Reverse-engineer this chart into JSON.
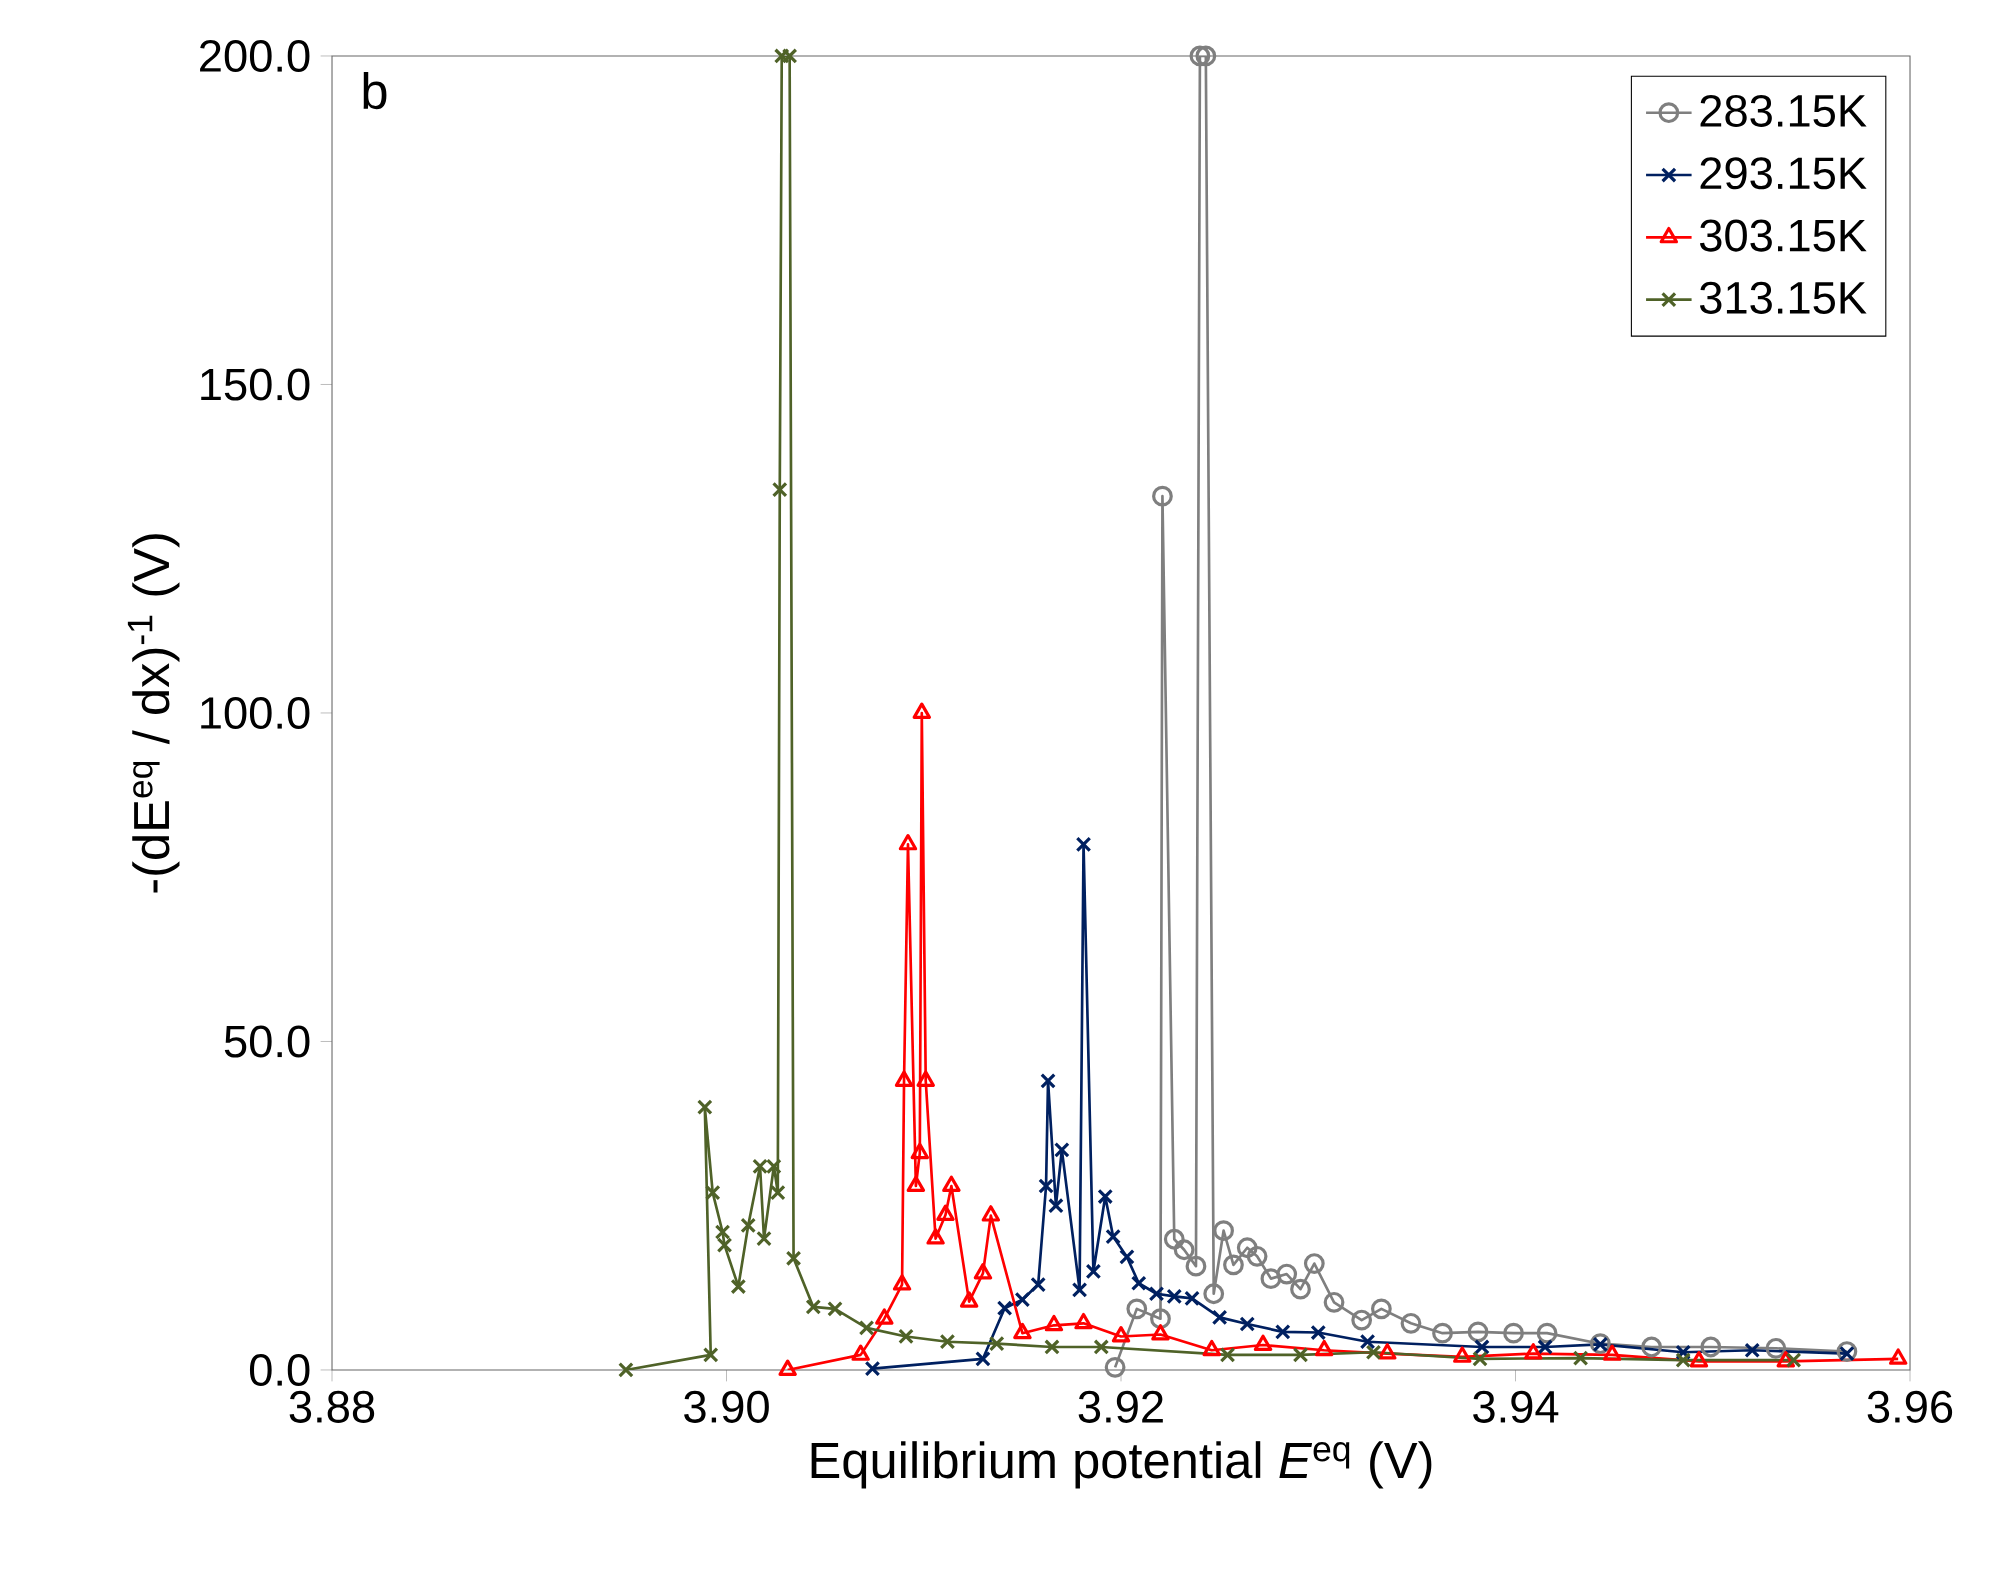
{
  "chart_data": {
    "type": "line",
    "xlabel": "Equilibrium potential  *E*$^{eq}$ (V)",
    "ylabel": "-(dE$^{eq}$ / dx)$^{-1}$  (V)",
    "annotations": [
      "b"
    ],
    "xlim": [
      3.88,
      3.96
    ],
    "xticks": [
      3.88,
      {
        "value": 3.9,
        "label": "3.90"
      },
      3.92,
      3.94,
      3.96
    ],
    "ylim": [
      0,
      200
    ],
    "yticks": [
      {
        "value": 0,
        "label": "0.0"
      },
      {
        "value": 50,
        "label": "50.0"
      },
      {
        "value": 100,
        "label": "100.0"
      },
      {
        "value": 150,
        "label": "150.0"
      },
      {
        "value": 200,
        "label": "200.0"
      }
    ],
    "grid": false,
    "legend": "top right",
    "series": [
      {
        "name": "283.15K",
        "color": "#7f7f7f",
        "marker": "circle",
        "x": [
          3.9197,
          3.9208,
          3.922,
          3.9221,
          3.9227,
          3.9232,
          3.9238,
          3.924,
          3.9243,
          3.9247,
          3.9252,
          3.9257,
          3.9264,
          3.9269,
          3.9276,
          3.9284,
          3.9291,
          3.9298,
          3.9308,
          3.9322,
          3.9332,
          3.9347,
          3.9363,
          3.9381,
          3.9399,
          3.9416,
          3.9443,
          3.9469,
          3.9499,
          3.9532,
          3.9568
        ],
        "values": [
          0.4,
          9.3,
          7.8,
          133,
          19.9,
          18.3,
          15.8,
          200,
          200,
          11.6,
          21.2,
          16,
          18.6,
          17.3,
          13.9,
          14.6,
          12.3,
          16.2,
          10.3,
          7.6,
          9.3,
          7.1,
          5.6,
          5.8,
          5.6,
          5.6,
          4,
          3.5,
          3.5,
          3.3,
          2.8
        ]
      },
      {
        "name": "293.15K",
        "color": "#002060",
        "marker": "cross",
        "x": [
          3.9074,
          3.913,
          3.9141,
          3.915,
          3.9158,
          3.9162,
          3.9163,
          3.9167,
          3.917,
          3.9179,
          3.9181,
          3.9186,
          3.9192,
          3.9196,
          3.9203,
          3.9209,
          3.9218,
          3.9227,
          3.9236,
          3.925,
          3.9264,
          3.9282,
          3.93,
          3.9325,
          3.9383,
          3.9415,
          3.9443,
          3.9485,
          3.952,
          3.9568
        ],
        "values": [
          0.2,
          1.7,
          9.4,
          10.7,
          13,
          28,
          44,
          25,
          33.5,
          12.2,
          80,
          15,
          26.4,
          20.3,
          17.2,
          13.2,
          11.6,
          11.2,
          10.9,
          8,
          7,
          5.8,
          5.7,
          4.3,
          3.5,
          3.5,
          3.9,
          2.7,
          3,
          2.5
        ]
      },
      {
        "name": "303.15K",
        "color": "#ff0000",
        "marker": "triangle",
        "x": [
          3.9031,
          3.9068,
          3.908,
          3.9089,
          3.909,
          3.9092,
          3.9096,
          3.9098,
          3.9099,
          3.9101,
          3.9106,
          3.9111,
          3.9114,
          3.9123,
          3.913,
          3.9134,
          3.915,
          3.9166,
          3.9181,
          3.92,
          3.922,
          3.9246,
          3.9272,
          3.9303,
          3.9335,
          3.9373,
          3.9409,
          3.9449,
          3.9493,
          3.9537,
          3.9594
        ],
        "values": [
          0,
          2.3,
          7.8,
          13,
          44,
          80,
          28,
          33,
          100,
          44,
          20,
          23.6,
          28,
          10.4,
          14.7,
          23.5,
          5.6,
          6.8,
          7.1,
          5.1,
          5.4,
          3,
          3.8,
          3,
          2.5,
          2,
          2.5,
          2.3,
          1.3,
          1.3,
          1.7
        ]
      },
      {
        "name": "313.15K",
        "color": "#4f6228",
        "marker": "cross",
        "x": [
          3.8949,
          3.8992,
          3.8989,
          3.8993,
          3.8998,
          3.8999,
          3.9006,
          3.9011,
          3.9017,
          3.9019,
          3.9024,
          3.9026,
          3.9027,
          3.9028,
          3.9032,
          3.9034,
          3.9044,
          3.9055,
          3.9071,
          3.9091,
          3.9112,
          3.9137,
          3.9165,
          3.919,
          3.9254,
          3.9291,
          3.9328,
          3.9382,
          3.9433,
          3.9485,
          3.9541
        ],
        "values": [
          0,
          2.3,
          40,
          27,
          21,
          19,
          12.7,
          22,
          31,
          20,
          31,
          27,
          134,
          200,
          200,
          17,
          9.6,
          9.3,
          6.4,
          5.1,
          4.3,
          4,
          3.5,
          3.5,
          2.3,
          2.3,
          2.7,
          1.7,
          1.8,
          1.5,
          1.5
        ]
      }
    ]
  }
}
